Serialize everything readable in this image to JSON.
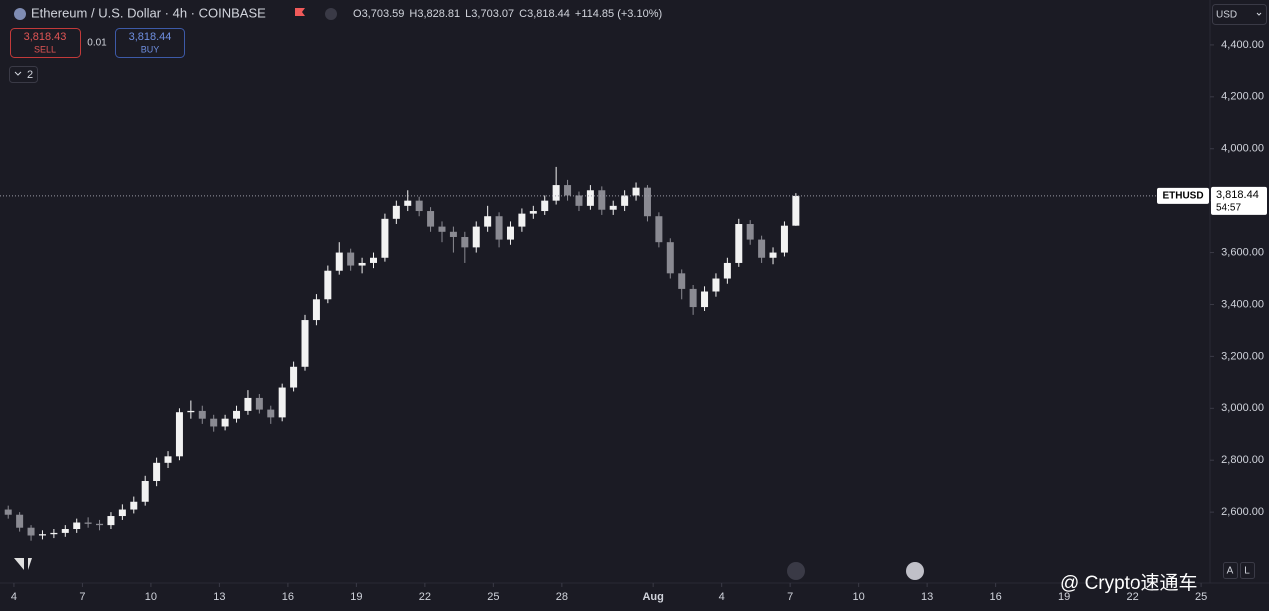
{
  "header": {
    "title": "Ethereum / U.S. Dollar · 4h · COINBASE",
    "open_label": "O",
    "open": "3,703.59",
    "high_label": "H",
    "high": "3,828.81",
    "low_label": "L",
    "low": "3,703.07",
    "close_label": "C",
    "close": "3,818.44",
    "change": "+114.85 (+3.10%)",
    "sell_price": "3,818.43",
    "sell": "SELL",
    "spread": "0.01",
    "buy_price": "3,818.44",
    "buy": "BUY",
    "indicators": "2",
    "currency": "USD",
    "watermark": "@ Crypto速通车",
    "scale_auto": "A",
    "scale_log": "L"
  },
  "chart_data": {
    "type": "candlestick",
    "color_up": "#f2f2f2",
    "color_down": "#8a8a92",
    "grid": false,
    "x": [
      -0.25,
      0.25,
      0.75,
      1.25,
      1.75,
      2.25,
      2.75,
      3.25,
      3.75,
      4.25,
      4.75,
      5.25,
      5.75,
      6.25,
      6.75,
      7.25,
      7.75,
      8.25,
      8.75,
      9.25,
      9.75,
      10.25,
      10.75,
      11.25,
      11.75,
      12.25,
      12.75,
      13.25,
      13.75,
      14.25,
      14.75,
      15.25,
      15.75,
      16.25,
      16.75,
      17.25,
      17.75,
      18.25,
      18.75,
      19.25,
      19.75,
      20.25,
      20.75,
      21.25,
      21.75,
      22.25,
      22.75,
      23.25,
      23.75,
      24.25,
      24.75,
      25.25,
      25.75,
      26.25,
      26.75,
      27.25,
      27.75,
      28.25,
      28.75,
      29.25,
      29.75,
      30.25,
      30.75,
      31.25,
      31.75,
      32.25,
      32.75,
      33.25,
      33.75,
      34.25
    ],
    "open": [
      2610,
      2590,
      2540,
      2510,
      2515,
      2520,
      2535,
      2560,
      2555,
      2550,
      2585,
      2610,
      2640,
      2720,
      2790,
      2815,
      2985,
      2990,
      2960,
      2930,
      2960,
      2990,
      3040,
      2995,
      2965,
      3080,
      3160,
      3340,
      3420,
      3530,
      3600,
      3550,
      3560,
      3580,
      3730,
      3780,
      3800,
      3760,
      3700,
      3680,
      3660,
      3620,
      3700,
      3740,
      3650,
      3700,
      3750,
      3760,
      3800,
      3860,
      3820,
      3780,
      3840,
      3765,
      3780,
      3820,
      3850,
      3740,
      3640,
      3520,
      3460,
      3390,
      3450,
      3500,
      3560,
      3710,
      3650,
      3580,
      3600,
      3703.59
    ],
    "high": [
      2625,
      2600,
      2550,
      2530,
      2535,
      2550,
      2575,
      2580,
      2570,
      2600,
      2630,
      2660,
      2740,
      2810,
      2835,
      3000,
      3030,
      3010,
      2975,
      2975,
      3010,
      3070,
      3055,
      3010,
      3095,
      3180,
      3360,
      3440,
      3550,
      3640,
      3615,
      3580,
      3600,
      3750,
      3800,
      3840,
      3815,
      3775,
      3720,
      3700,
      3680,
      3720,
      3780,
      3755,
      3720,
      3770,
      3780,
      3820,
      3930,
      3880,
      3835,
      3860,
      3855,
      3800,
      3840,
      3870,
      3860,
      3755,
      3655,
      3535,
      3475,
      3470,
      3520,
      3580,
      3730,
      3725,
      3665,
      3620,
      3720,
      3828.81
    ],
    "low": [
      2575,
      2525,
      2490,
      2495,
      2500,
      2505,
      2520,
      2540,
      2530,
      2535,
      2570,
      2595,
      2625,
      2700,
      2770,
      2800,
      2960,
      2940,
      2910,
      2915,
      2945,
      2975,
      2980,
      2940,
      2950,
      3065,
      3145,
      3320,
      3405,
      3515,
      3530,
      3520,
      3540,
      3565,
      3710,
      3760,
      3740,
      3680,
      3640,
      3600,
      3560,
      3600,
      3680,
      3620,
      3630,
      3680,
      3730,
      3745,
      3785,
      3800,
      3760,
      3765,
      3745,
      3745,
      3760,
      3800,
      3720,
      3620,
      3500,
      3420,
      3360,
      3375,
      3430,
      3480,
      3545,
      3630,
      3560,
      3555,
      3585,
      3703.07
    ],
    "close": [
      2590,
      2540,
      2510,
      2515,
      2520,
      2535,
      2560,
      2555,
      2550,
      2585,
      2610,
      2640,
      2720,
      2790,
      2815,
      2985,
      2990,
      2960,
      2930,
      2960,
      2990,
      3040,
      2995,
      2965,
      3080,
      3160,
      3340,
      3420,
      3530,
      3600,
      3550,
      3560,
      3580,
      3730,
      3780,
      3800,
      3760,
      3700,
      3680,
      3660,
      3620,
      3700,
      3740,
      3650,
      3700,
      3750,
      3760,
      3800,
      3860,
      3820,
      3780,
      3840,
      3765,
      3780,
      3820,
      3850,
      3740,
      3640,
      3520,
      3460,
      3390,
      3450,
      3500,
      3560,
      3710,
      3650,
      3580,
      3600,
      3703.59,
      3818.44
    ],
    "xlim": [
      -0.61,
      52.39
    ],
    "xticks": [
      {
        "value": 0,
        "label": "4"
      },
      {
        "value": 3,
        "label": "7"
      },
      {
        "value": 6,
        "label": "10"
      },
      {
        "value": 9,
        "label": "13"
      },
      {
        "value": 12,
        "label": "16"
      },
      {
        "value": 15,
        "label": "19"
      },
      {
        "value": 18,
        "label": "22"
      },
      {
        "value": 21,
        "label": "25"
      },
      {
        "value": 24,
        "label": "28"
      },
      {
        "value": 28,
        "label": "Aug"
      },
      {
        "value": 31,
        "label": "4"
      },
      {
        "value": 34,
        "label": "7"
      },
      {
        "value": 37,
        "label": "10"
      },
      {
        "value": 40,
        "label": "13"
      },
      {
        "value": 43,
        "label": "16"
      },
      {
        "value": 46,
        "label": "19"
      },
      {
        "value": 49,
        "label": "22"
      },
      {
        "value": 52,
        "label": "25"
      }
    ],
    "ylim": [
      2327,
      4573
    ],
    "yticks": [
      {
        "value": 2600,
        "label": "2,600.00"
      },
      {
        "value": 2800,
        "label": "2,800.00"
      },
      {
        "value": 3000,
        "label": "3,000.00"
      },
      {
        "value": 3200,
        "label": "3,200.00"
      },
      {
        "value": 3400,
        "label": "3,400.00"
      },
      {
        "value": 3600,
        "label": "3,600.00"
      },
      {
        "value": 3800,
        "label": "3,800.00"
      },
      {
        "value": 4000,
        "label": "4,000.00"
      },
      {
        "value": 4200,
        "label": "4,200.00"
      },
      {
        "value": 4400,
        "label": "4,400.00"
      }
    ],
    "price_line": {
      "value": 3818.44,
      "label": "3,818.44",
      "symbol": "ETHUSD",
      "countdown": "54:57"
    }
  }
}
